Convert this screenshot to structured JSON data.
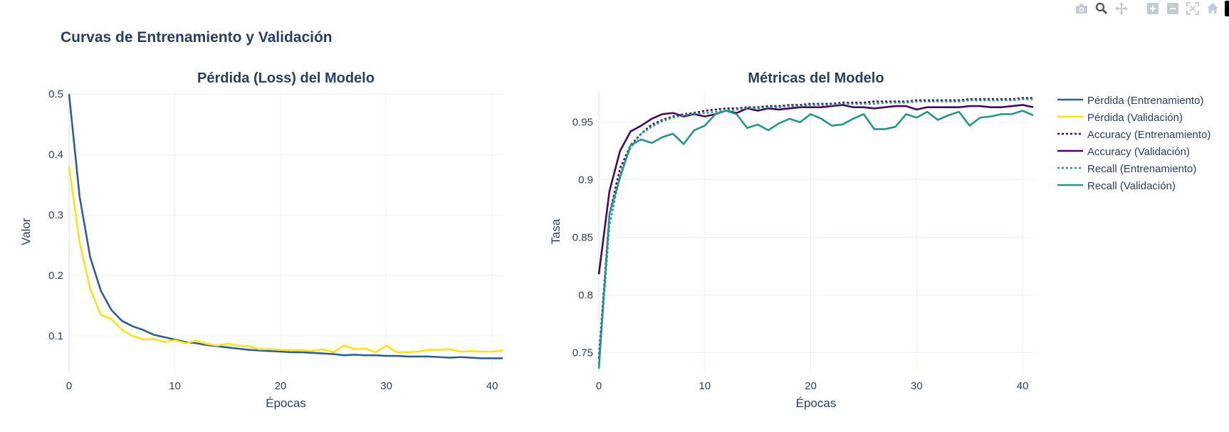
{
  "page_title": "Curvas de Entrenamiento y Validación",
  "modebar": {
    "buttons": [
      "camera-icon",
      "zoom-icon",
      "pan-icon",
      "zoom-in-icon",
      "zoom-out-icon",
      "autoscale-icon",
      "reset-axes-icon"
    ]
  },
  "colors": {
    "loss_train": "#2f5f8a",
    "loss_val": "#f6e31a",
    "acc": "#46085c",
    "recall": "#24958a",
    "title": "#2a3f5f",
    "grid": "#ebf0f8"
  },
  "chart_data": [
    {
      "type": "line",
      "title": "Pérdida (Loss) del Modelo",
      "xlabel": "Épocas",
      "ylabel": "Valor",
      "xlim": [
        0,
        41
      ],
      "ylim": [
        0.04,
        0.505
      ],
      "xticks": [
        0,
        10,
        20,
        30,
        40
      ],
      "yticks": [
        0.1,
        0.2,
        0.3,
        0.4,
        0.5
      ],
      "ytick_labels": [
        "0.1",
        "0.2",
        "0.3",
        "0.4",
        "0.5"
      ],
      "grid": true,
      "series": [
        {
          "name": "Pérdida (Entrenamiento)",
          "color": "#2f5f8a",
          "dash": "solid",
          "x": [
            0,
            1,
            2,
            3,
            4,
            5,
            6,
            7,
            8,
            9,
            10,
            11,
            12,
            13,
            14,
            15,
            16,
            17,
            18,
            19,
            20,
            21,
            22,
            23,
            24,
            25,
            26,
            27,
            28,
            29,
            30,
            31,
            32,
            33,
            34,
            35,
            36,
            37,
            38,
            39,
            40,
            41
          ],
          "values": [
            0.5,
            0.33,
            0.23,
            0.175,
            0.143,
            0.125,
            0.116,
            0.11,
            0.102,
            0.098,
            0.094,
            0.09,
            0.088,
            0.085,
            0.083,
            0.081,
            0.079,
            0.077,
            0.076,
            0.075,
            0.074,
            0.073,
            0.073,
            0.072,
            0.071,
            0.07,
            0.068,
            0.069,
            0.068,
            0.068,
            0.067,
            0.067,
            0.066,
            0.066,
            0.066,
            0.065,
            0.064,
            0.065,
            0.064,
            0.063,
            0.063,
            0.063
          ]
        },
        {
          "name": "Pérdida (Validación)",
          "color": "#f6e31a",
          "dash": "solid",
          "x": [
            0,
            1,
            2,
            3,
            4,
            5,
            6,
            7,
            8,
            9,
            10,
            11,
            12,
            13,
            14,
            15,
            16,
            17,
            18,
            19,
            20,
            21,
            22,
            23,
            24,
            25,
            26,
            27,
            28,
            29,
            30,
            31,
            32,
            33,
            34,
            35,
            36,
            37,
            38,
            39,
            40,
            41
          ],
          "values": [
            0.38,
            0.255,
            0.178,
            0.135,
            0.128,
            0.11,
            0.1,
            0.094,
            0.095,
            0.09,
            0.093,
            0.088,
            0.092,
            0.087,
            0.084,
            0.087,
            0.084,
            0.083,
            0.078,
            0.078,
            0.077,
            0.076,
            0.077,
            0.075,
            0.078,
            0.073,
            0.084,
            0.078,
            0.079,
            0.073,
            0.084,
            0.073,
            0.073,
            0.074,
            0.077,
            0.077,
            0.078,
            0.074,
            0.075,
            0.074,
            0.074,
            0.076
          ]
        }
      ]
    },
    {
      "type": "line",
      "title": "Métricas del Modelo",
      "xlabel": "Épocas",
      "ylabel": "Tasa",
      "xlim": [
        0,
        41
      ],
      "ylim": [
        0.733,
        0.977
      ],
      "xticks": [
        0,
        10,
        20,
        30,
        40
      ],
      "yticks": [
        0.75,
        0.8,
        0.85,
        0.9,
        0.95
      ],
      "ytick_labels": [
        "0.75",
        "0.8",
        "0.85",
        "0.9",
        "0.95"
      ],
      "grid": true,
      "series": [
        {
          "name": "Accuracy (Entrenamiento)",
          "color": "#46085c",
          "dash": "dot",
          "x": [
            0,
            1,
            2,
            3,
            4,
            5,
            6,
            7,
            8,
            9,
            10,
            11,
            12,
            13,
            14,
            15,
            16,
            17,
            18,
            19,
            20,
            21,
            22,
            23,
            24,
            25,
            26,
            27,
            28,
            29,
            30,
            31,
            32,
            33,
            34,
            35,
            36,
            37,
            38,
            39,
            40,
            41
          ],
          "values": [
            0.745,
            0.87,
            0.91,
            0.93,
            0.94,
            0.948,
            0.952,
            0.955,
            0.957,
            0.958,
            0.96,
            0.961,
            0.962,
            0.962,
            0.963,
            0.963,
            0.964,
            0.964,
            0.965,
            0.965,
            0.966,
            0.966,
            0.966,
            0.967,
            0.967,
            0.967,
            0.968,
            0.968,
            0.968,
            0.968,
            0.969,
            0.969,
            0.969,
            0.969,
            0.969,
            0.97,
            0.97,
            0.97,
            0.97,
            0.97,
            0.971,
            0.971
          ]
        },
        {
          "name": "Accuracy (Validación)",
          "color": "#46085c",
          "dash": "solid",
          "x": [
            0,
            1,
            2,
            3,
            4,
            5,
            6,
            7,
            8,
            9,
            10,
            11,
            12,
            13,
            14,
            15,
            16,
            17,
            18,
            19,
            20,
            21,
            22,
            23,
            24,
            25,
            26,
            27,
            28,
            29,
            30,
            31,
            32,
            33,
            34,
            35,
            36,
            37,
            38,
            39,
            40,
            41
          ],
          "values": [
            0.818,
            0.89,
            0.925,
            0.942,
            0.947,
            0.953,
            0.957,
            0.958,
            0.955,
            0.957,
            0.955,
            0.957,
            0.96,
            0.958,
            0.962,
            0.96,
            0.962,
            0.961,
            0.962,
            0.963,
            0.963,
            0.963,
            0.964,
            0.965,
            0.963,
            0.963,
            0.962,
            0.963,
            0.964,
            0.964,
            0.961,
            0.963,
            0.963,
            0.963,
            0.963,
            0.964,
            0.964,
            0.963,
            0.963,
            0.964,
            0.965,
            0.963
          ]
        },
        {
          "name": "Recall (Entrenamiento)",
          "color": "#24958a",
          "dash": "dot",
          "x": [
            0,
            1,
            2,
            3,
            4,
            5,
            6,
            7,
            8,
            9,
            10,
            11,
            12,
            13,
            14,
            15,
            16,
            17,
            18,
            19,
            20,
            21,
            22,
            23,
            24,
            25,
            26,
            27,
            28,
            29,
            30,
            31,
            32,
            33,
            34,
            35,
            36,
            37,
            38,
            39,
            40,
            41
          ],
          "values": [
            0.74,
            0.86,
            0.905,
            0.928,
            0.94,
            0.946,
            0.951,
            0.954,
            0.956,
            0.957,
            0.958,
            0.959,
            0.96,
            0.961,
            0.962,
            0.962,
            0.963,
            0.963,
            0.964,
            0.964,
            0.965,
            0.965,
            0.965,
            0.966,
            0.966,
            0.966,
            0.966,
            0.967,
            0.967,
            0.967,
            0.968,
            0.968,
            0.968,
            0.968,
            0.968,
            0.969,
            0.969,
            0.969,
            0.969,
            0.969,
            0.97,
            0.97
          ]
        },
        {
          "name": "Recall (Validación)",
          "color": "#24958a",
          "dash": "solid",
          "x": [
            0,
            1,
            2,
            3,
            4,
            5,
            6,
            7,
            8,
            9,
            10,
            11,
            12,
            13,
            14,
            15,
            16,
            17,
            18,
            19,
            20,
            21,
            22,
            23,
            24,
            25,
            26,
            27,
            28,
            29,
            30,
            31,
            32,
            33,
            34,
            35,
            36,
            37,
            38,
            39,
            40,
            41
          ],
          "values": [
            0.736,
            0.87,
            0.902,
            0.93,
            0.935,
            0.932,
            0.937,
            0.94,
            0.931,
            0.943,
            0.947,
            0.957,
            0.96,
            0.957,
            0.945,
            0.948,
            0.943,
            0.949,
            0.953,
            0.95,
            0.957,
            0.953,
            0.947,
            0.948,
            0.953,
            0.957,
            0.944,
            0.944,
            0.946,
            0.957,
            0.954,
            0.959,
            0.952,
            0.956,
            0.959,
            0.947,
            0.954,
            0.955,
            0.957,
            0.957,
            0.96,
            0.956
          ]
        }
      ]
    }
  ],
  "legend": {
    "position": "right",
    "items": [
      "Pérdida (Entrenamiento)",
      "Pérdida (Validación)",
      "Accuracy (Entrenamiento)",
      "Accuracy (Validación)",
      "Recall (Entrenamiento)",
      "Recall (Validación)"
    ]
  }
}
